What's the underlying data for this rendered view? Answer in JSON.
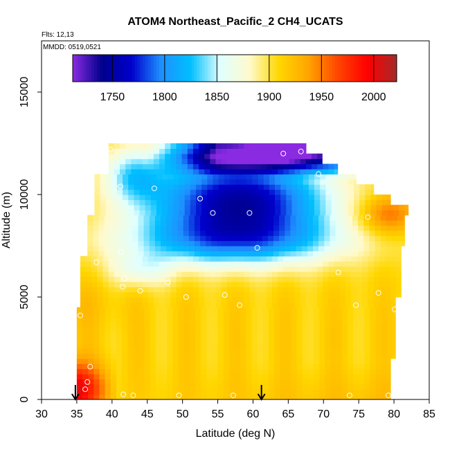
{
  "chart_data": {
    "type": "heatmap",
    "title": "ATOM4 Northeast_Pacific_2 CH4_UCATS",
    "info_lines": [
      "Flts: 12,13",
      "MMDD: 0519,0521"
    ],
    "xlabel": "Latitude (deg N)",
    "ylabel": "Altitude (m)",
    "xlim": [
      30,
      85
    ],
    "ylim": [
      0,
      17500
    ],
    "x_ticks": [
      30,
      35,
      40,
      45,
      50,
      55,
      60,
      65,
      70,
      75,
      80,
      85
    ],
    "y_ticks": [
      0,
      5000,
      10000,
      15000
    ],
    "colorbar": {
      "range": [
        1712,
        2022
      ],
      "ticks": [
        1750,
        1800,
        1850,
        1900,
        1950,
        2000
      ],
      "colors": [
        "#8a2be2",
        "#00008b",
        "#0000cd",
        "#1e90ff",
        "#00bfff",
        "#e0ffff",
        "#fffacd",
        "#ffd700",
        "#ffa500",
        "#ff4500",
        "#ff0000",
        "#a52a2a"
      ]
    },
    "legend_placement": "top (colorbar)",
    "grid": false,
    "arrow_latitudes": [
      34.8,
      61.2
    ],
    "observations": [
      {
        "lat": 35.5,
        "alt": 4100
      },
      {
        "lat": 36.2,
        "alt": 500
      },
      {
        "lat": 36.5,
        "alt": 850
      },
      {
        "lat": 36.9,
        "alt": 1600
      },
      {
        "lat": 37.8,
        "alt": 6700
      },
      {
        "lat": 39.8,
        "alt": 12200
      },
      {
        "lat": 41.2,
        "alt": 10400
      },
      {
        "lat": 41.3,
        "alt": 7200
      },
      {
        "lat": 41.8,
        "alt": 5900
      },
      {
        "lat": 41.5,
        "alt": 5500
      },
      {
        "lat": 41.6,
        "alt": 250
      },
      {
        "lat": 43.0,
        "alt": 200
      },
      {
        "lat": 44.0,
        "alt": 5300
      },
      {
        "lat": 46.0,
        "alt": 10300
      },
      {
        "lat": 47.9,
        "alt": 5700
      },
      {
        "lat": 49.5,
        "alt": 200
      },
      {
        "lat": 50.5,
        "alt": 5000
      },
      {
        "lat": 52.5,
        "alt": 9800
      },
      {
        "lat": 54.3,
        "alt": 9100
      },
      {
        "lat": 56.0,
        "alt": 5100
      },
      {
        "lat": 57.2,
        "alt": 200
      },
      {
        "lat": 58.1,
        "alt": 4600
      },
      {
        "lat": 59.5,
        "alt": 9100
      },
      {
        "lat": 60.6,
        "alt": 7400
      },
      {
        "lat": 64.3,
        "alt": 12000
      },
      {
        "lat": 66.8,
        "alt": 12100
      },
      {
        "lat": 69.3,
        "alt": 11000
      },
      {
        "lat": 72.1,
        "alt": 6200
      },
      {
        "lat": 73.7,
        "alt": 200
      },
      {
        "lat": 74.6,
        "alt": 4600
      },
      {
        "lat": 76.3,
        "alt": 8900
      },
      {
        "lat": 77.8,
        "alt": 5200
      },
      {
        "lat": 79.2,
        "alt": 200
      },
      {
        "lat": 80.1,
        "alt": 4400
      }
    ]
  }
}
